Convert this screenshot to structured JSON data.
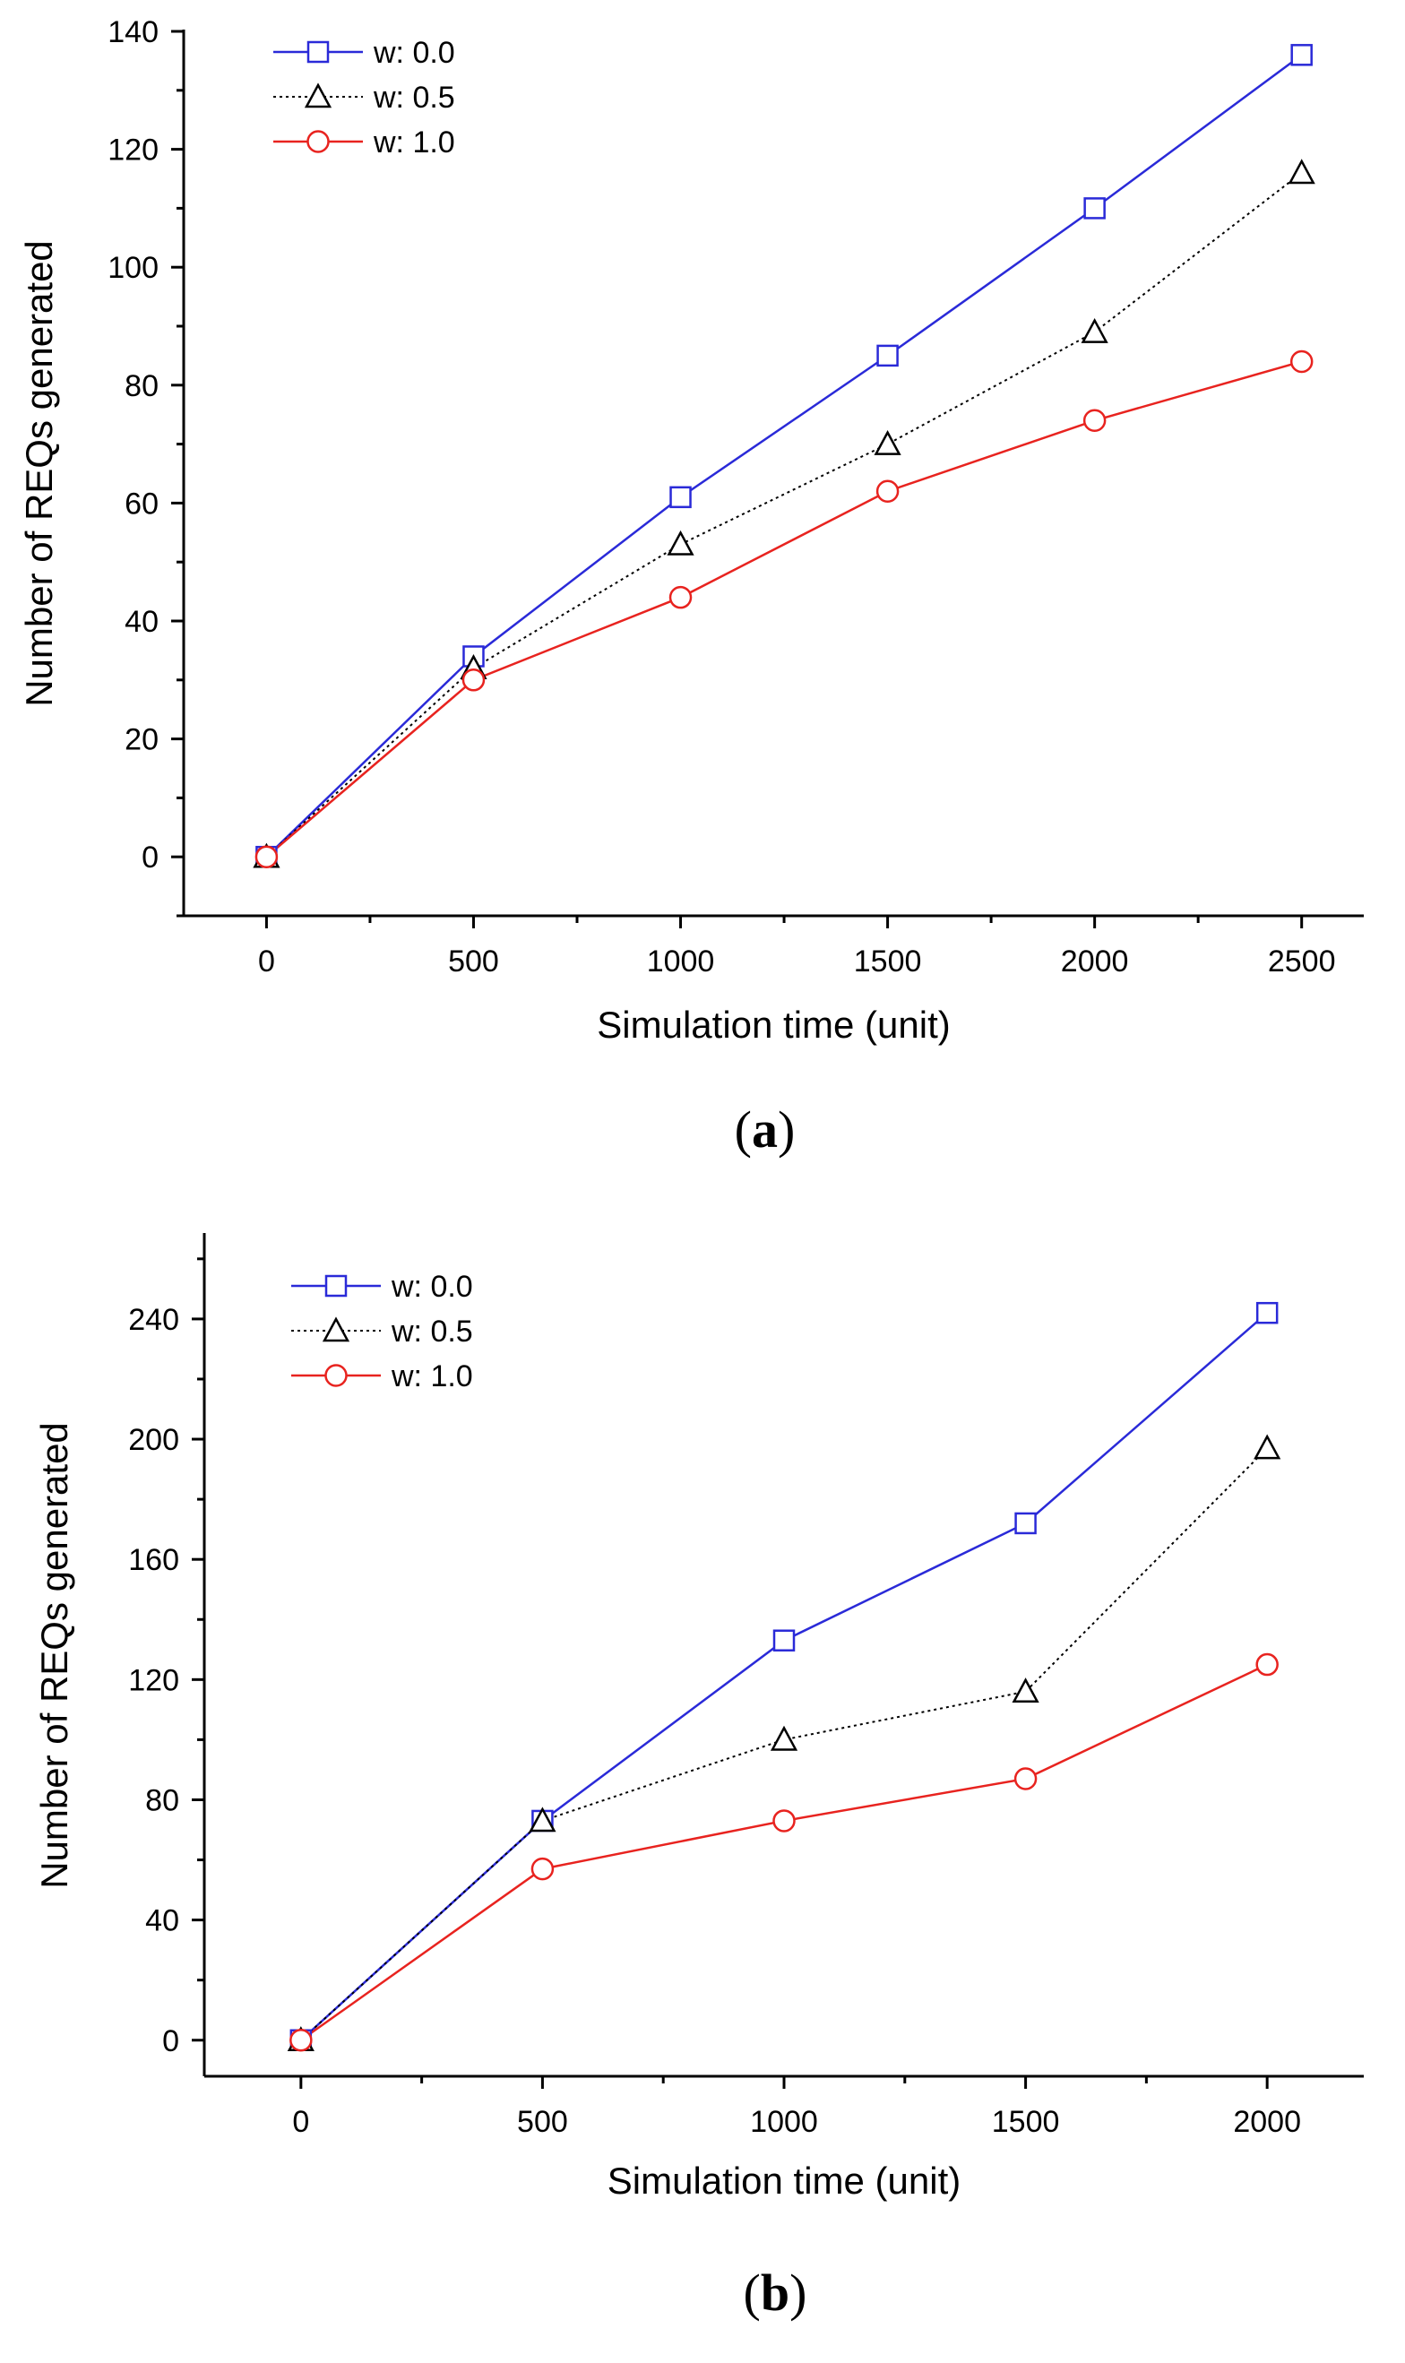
{
  "colors": {
    "w00": "#2a2ad8",
    "w05": "#000000",
    "w10": "#e8231f"
  },
  "chart_data": [
    {
      "type": "line",
      "caption_letter": "a",
      "xlabel": "Simulation time (unit)",
      "ylabel": "Number of REQs generated",
      "x": [
        0,
        500,
        1000,
        1500,
        2000,
        2500
      ],
      "xticks": [
        "0",
        "500",
        "1000",
        "1500",
        "2000",
        "2500"
      ],
      "yticks": [
        "0",
        "20",
        "40",
        "60",
        "80",
        "100",
        "120",
        "140"
      ],
      "xlim": [
        -200,
        2650
      ],
      "ylim": [
        -10,
        140
      ],
      "legend_position": "top-left",
      "series": [
        {
          "name": "w: 0.0",
          "marker": "square",
          "line": "solid",
          "color_key": "w00",
          "values": [
            0,
            34,
            61,
            85,
            110,
            136
          ]
        },
        {
          "name": "w: 0.5",
          "marker": "triangle",
          "line": "dotted",
          "color_key": "w05",
          "values": [
            0,
            32,
            53,
            70,
            89,
            116
          ]
        },
        {
          "name": "w: 1.0",
          "marker": "circle",
          "line": "solid",
          "color_key": "w10",
          "values": [
            0,
            30,
            44,
            62,
            74,
            84
          ]
        }
      ]
    },
    {
      "type": "line",
      "caption_letter": "b",
      "xlabel": "Simulation time (unit)",
      "ylabel": "Number of REQs generated",
      "x": [
        0,
        500,
        1000,
        1500,
        2000
      ],
      "xticks": [
        "0",
        "500",
        "1000",
        "1500",
        "2000"
      ],
      "yticks": [
        "0",
        "40",
        "80",
        "120",
        "160",
        "200",
        "240"
      ],
      "xlim": [
        -200,
        2200
      ],
      "ylim": [
        -12,
        268
      ],
      "legend_position": "top-left",
      "series": [
        {
          "name": "w: 0.0",
          "marker": "square",
          "line": "solid",
          "color_key": "w00",
          "values": [
            0,
            73,
            133,
            172,
            242
          ]
        },
        {
          "name": "w: 0.5",
          "marker": "triangle",
          "line": "dotted",
          "color_key": "w05",
          "values": [
            0,
            73,
            100,
            116,
            197
          ]
        },
        {
          "name": "w: 1.0",
          "marker": "circle",
          "line": "solid",
          "color_key": "w10",
          "values": [
            0,
            57,
            73,
            87,
            125
          ]
        }
      ]
    }
  ]
}
